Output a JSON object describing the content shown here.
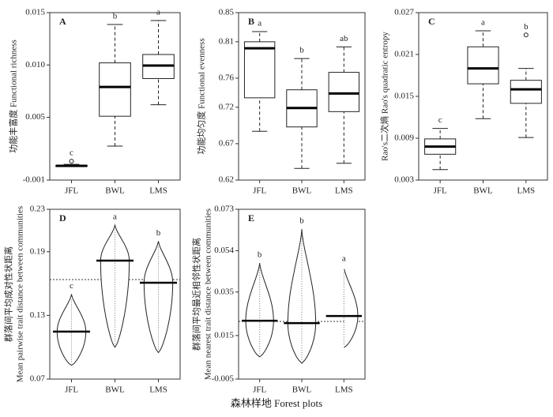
{
  "xlabel": "森林样地 Forest plots",
  "chart_data": [
    {
      "type": "box",
      "panel_label": "A",
      "ylabel": [
        "功能丰富度 Functional richness"
      ],
      "categories": [
        "JFL",
        "BWL",
        "LMS"
      ],
      "ylim": [
        -0.001,
        0.015
      ],
      "yticks": [
        -0.001,
        0.005,
        {
          "value": 0.01,
          "label": "0.010"
        },
        0.015
      ],
      "boxes": [
        {
          "whislo": 0.0003,
          "q1": 0.0003,
          "med": 0.00036,
          "q3": 0.0004,
          "whishi": 0.0005,
          "fliers": [
            0.0008
          ]
        },
        {
          "whislo": 0.00225,
          "q1": 0.0051,
          "med": 0.0079,
          "q3": 0.0102,
          "whishi": 0.01387
        },
        {
          "whislo": 0.0062,
          "q1": 0.0087,
          "med": 0.00994,
          "q3": 0.011,
          "whishi": 0.01425
        }
      ],
      "letters": [
        "c",
        "b",
        "a"
      ]
    },
    {
      "type": "box",
      "panel_label": "B",
      "ylabel": [
        "功能均匀度 Functional evenness"
      ],
      "categories": [
        "JFL",
        "BWL",
        "LMS"
      ],
      "ylim": [
        0.62,
        0.85
      ],
      "yticks": [
        0.62,
        0.67,
        0.72,
        0.76,
        0.81,
        0.85
      ],
      "boxes": [
        {
          "whislo": 0.687,
          "q1": 0.733,
          "med": 0.801,
          "q3": 0.81,
          "whishi": 0.824
        },
        {
          "whislo": 0.636,
          "q1": 0.693,
          "med": 0.719,
          "q3": 0.744,
          "whishi": 0.787
        },
        {
          "whislo": 0.643,
          "q1": 0.714,
          "med": 0.739,
          "q3": 0.768,
          "whishi": 0.803
        }
      ],
      "letters": [
        "a",
        "b",
        "ab"
      ]
    },
    {
      "type": "box",
      "panel_label": "C",
      "ylabel": [
        "Rao's二次熵 Rao's quadratic entropy"
      ],
      "categories": [
        "JFL",
        "BWL",
        "LMS"
      ],
      "ylim": [
        0.003,
        0.027
      ],
      "yticks": [
        0.003,
        0.009,
        0.015,
        0.021,
        0.027
      ],
      "boxes": [
        {
          "whislo": 0.0045,
          "q1": 0.0067,
          "med": 0.0078,
          "q3": 0.0089,
          "whishi": 0.0104
        },
        {
          "whislo": 0.0118,
          "q1": 0.0168,
          "med": 0.019,
          "q3": 0.0221,
          "whishi": 0.0244
        },
        {
          "whislo": 0.0091,
          "q1": 0.014,
          "med": 0.016,
          "q3": 0.0173,
          "whishi": 0.019,
          "fliers": [
            0.0238
          ]
        }
      ],
      "letters": [
        "c",
        "a",
        "b"
      ]
    },
    {
      "type": "violin",
      "panel_label": "D",
      "ylabel": [
        "群落间平均成对性状距离",
        "Mean pairwise trait distance between communities"
      ],
      "categories": [
        "JFL",
        "BWL",
        "LMS"
      ],
      "ylim": [
        0.07,
        0.23
      ],
      "yticks": [
        0.07,
        0.13,
        0.19,
        0.23
      ],
      "violins": [
        {
          "min": 0.083,
          "max": 0.15,
          "mean": 0.1147
        },
        {
          "min": 0.1,
          "max": 0.215,
          "mean": 0.1816
        },
        {
          "min": 0.095,
          "max": 0.2,
          "mean": 0.1608
        }
      ],
      "reference_line": 0.1638,
      "letters": [
        "c",
        "a",
        "b"
      ]
    },
    {
      "type": "violin",
      "panel_label": "E",
      "ylabel": [
        "群落间平均最近相邻性状距离",
        "Mean nearest trait distance between communities"
      ],
      "categories": [
        "JFL",
        "BWL",
        "LMS"
      ],
      "ylim": [
        -0.005,
        0.073
      ],
      "yticks": [
        -0.005,
        0.015,
        0.035,
        0.054,
        0.073
      ],
      "violins": [
        {
          "min": 0.0052,
          "max": 0.0483,
          "mean": 0.0218
        },
        {
          "min": 0.0023,
          "max": 0.0639,
          "mean": 0.0207
        },
        {
          "min": 0.0095,
          "max": 0.0465,
          "mean": 0.024
        }
      ],
      "reference_line": 0.0215,
      "letters": [
        "b",
        "b",
        "a"
      ]
    }
  ]
}
